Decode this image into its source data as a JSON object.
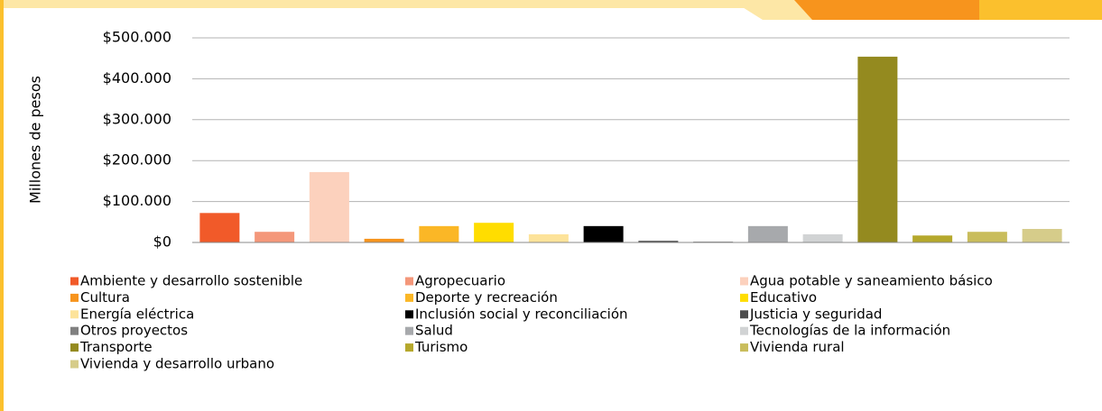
{
  "chart_data": {
    "type": "bar",
    "y_label": "Millones de pesos",
    "categories": [
      "Ambiente y desarrollo sostenible",
      "Agropecuario",
      "Agua potable y saneamiento básico",
      "Cultura",
      "Deporte y recreación",
      "Educativo",
      "Energía eléctrica",
      "Inclusión social y reconciliación",
      "Justicia y seguridad",
      "Otros proyectos",
      "Salud",
      "Tecnologías de la información",
      "Transporte",
      "Turismo",
      "Vivienda rural",
      "Vivienda y desarrollo urbano"
    ],
    "values": [
      72000,
      26000,
      172000,
      9000,
      40000,
      48000,
      20000,
      40000,
      4000,
      2000,
      40000,
      20000,
      454000,
      17000,
      26000,
      33000
    ],
    "colors": [
      "#f15a29",
      "#f4977a",
      "#fcd1bd",
      "#f7941d",
      "#fbb726",
      "#ffdd00",
      "#fde39a",
      "#000000",
      "#4d4d4d",
      "#808080",
      "#a7a9ac",
      "#d1d3d4",
      "#948a1f",
      "#b5a82c",
      "#c9bd5c",
      "#d6cc8a"
    ],
    "ylim": [
      0,
      500000
    ],
    "yticks": [
      {
        "value": 0,
        "label": "$0"
      },
      {
        "value": 100000,
        "label": "$100.000"
      },
      {
        "value": 200000,
        "label": "$200.000"
      },
      {
        "value": 300000,
        "label": "$300.000"
      },
      {
        "value": 400000,
        "label": "$400.000"
      },
      {
        "value": 500000,
        "label": "$500.000"
      }
    ],
    "grid": true
  }
}
